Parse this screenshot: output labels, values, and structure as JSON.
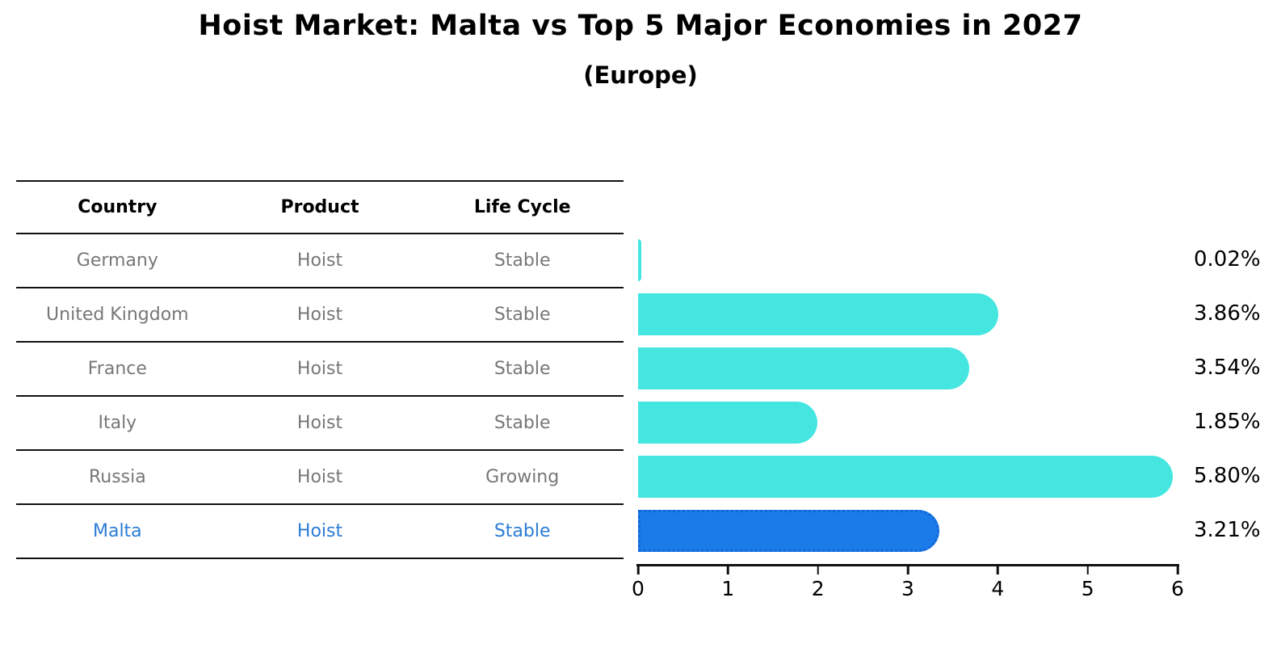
{
  "header": {
    "title": "Hoist Market: Malta vs Top 5 Major Economies in 2027",
    "subtitle": "(Europe)"
  },
  "table": {
    "headers": [
      "Country",
      "Product",
      "Life Cycle"
    ],
    "rows": [
      {
        "country": "Germany",
        "product": "Hoist",
        "life_cycle": "Stable",
        "highlight": false
      },
      {
        "country": "United Kingdom",
        "product": "Hoist",
        "life_cycle": "Stable",
        "highlight": false
      },
      {
        "country": "France",
        "product": "Hoist",
        "life_cycle": "Stable",
        "highlight": false
      },
      {
        "country": "Italy",
        "product": "Hoist",
        "life_cycle": "Stable",
        "highlight": false
      },
      {
        "country": "Russia",
        "product": "Hoist",
        "life_cycle": "Growing",
        "highlight": false
      },
      {
        "country": "Malta",
        "product": "Hoist",
        "life_cycle": "Stable",
        "highlight": true
      }
    ]
  },
  "chart_data": {
    "type": "bar",
    "orientation": "horizontal",
    "title": "Hoist Market: Malta vs Top 5 Major Economies in 2027",
    "subtitle": "(Europe)",
    "categories": [
      "Germany",
      "United Kingdom",
      "France",
      "Italy",
      "Russia",
      "Malta"
    ],
    "values": [
      0.02,
      3.86,
      3.54,
      1.85,
      5.8,
      3.21
    ],
    "value_labels": [
      "0.02%",
      "3.86%",
      "3.54%",
      "1.85%",
      "5.80%",
      "3.21%"
    ],
    "xlim": [
      0,
      6
    ],
    "x_ticks": [
      "0",
      "1",
      "2",
      "3",
      "4",
      "5",
      "6"
    ],
    "xlabel": "",
    "ylabel": "",
    "grid": false,
    "legend": false,
    "highlight_index": 5,
    "bar_color": "#45e6e0",
    "highlight_color": "#1b7ce9"
  },
  "colors": {
    "bar_cyan": "#45e6e0",
    "bar_blue": "#1b7ce9",
    "bar_blue_border": "#1266d9",
    "malta_text": "#2b7cd6",
    "table_text": "#777777",
    "line": "#111111"
  }
}
